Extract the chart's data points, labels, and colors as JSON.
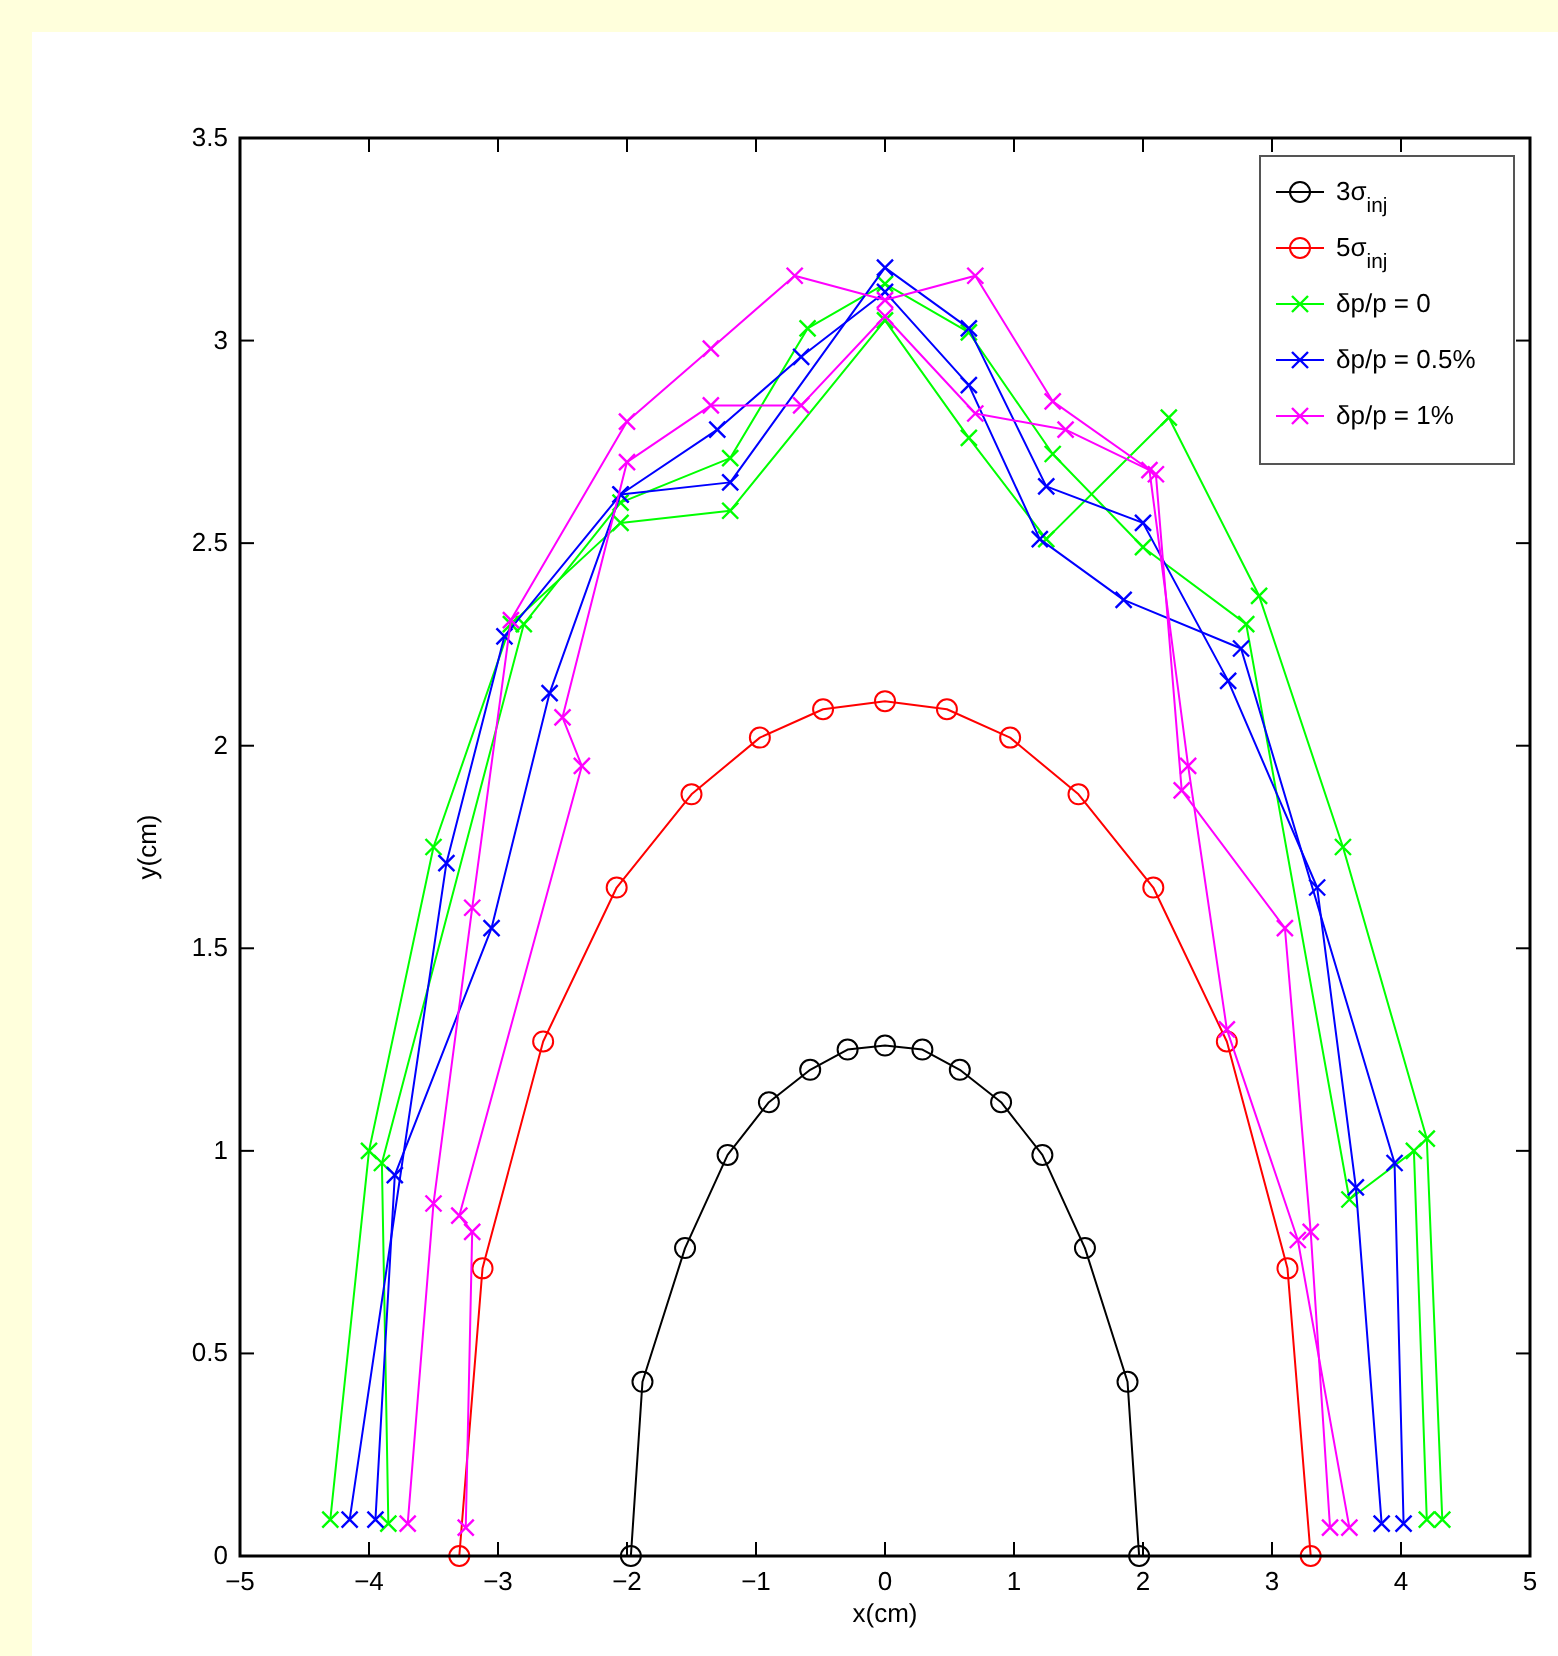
{
  "chart_data": {
    "type": "line",
    "xlabel": "x(cm)",
    "ylabel": "y(cm)",
    "xlim": [
      -5,
      5
    ],
    "ylim": [
      0,
      3.5
    ],
    "xticks": [
      {
        "value": -5,
        "label": "−5"
      },
      {
        "value": -4,
        "label": "−4"
      },
      {
        "value": -3,
        "label": "−3"
      },
      {
        "value": -2,
        "label": "−2"
      },
      {
        "value": -1,
        "label": "−1"
      },
      0,
      1,
      2,
      3,
      4,
      5
    ],
    "yticks": [
      0,
      0.5,
      1,
      1.5,
      2,
      2.5,
      3,
      3.5
    ],
    "grid": false,
    "legend": "top right",
    "line_style": "solid",
    "series": [
      {
        "name": "3σ$_{inj}$",
        "color": "#000000",
        "marker": "circle",
        "x": [
          -1.97,
          -1.88,
          -1.55,
          -1.22,
          -0.9,
          -0.58,
          -0.29,
          0,
          0.29,
          0.58,
          0.9,
          1.22,
          1.55,
          1.88,
          1.97
        ],
        "values": [
          0,
          0.43,
          0.76,
          0.99,
          1.12,
          1.2,
          1.25,
          1.26,
          1.25,
          1.2,
          1.12,
          0.99,
          0.76,
          0.43,
          0
        ]
      },
      {
        "name": "5σ$_{inj}$",
        "color": "#ff0000",
        "marker": "circle",
        "x": [
          -3.3,
          -3.12,
          -2.65,
          -2.08,
          -1.5,
          -0.97,
          -0.48,
          0,
          0.48,
          0.97,
          1.5,
          2.08,
          2.65,
          3.12,
          3.3
        ],
        "values": [
          0,
          0.71,
          1.27,
          1.65,
          1.88,
          2.02,
          2.09,
          2.11,
          2.09,
          2.02,
          1.88,
          1.65,
          1.27,
          0.71,
          0
        ]
      },
      {
        "name": "δp/p = 0",
        "color": "#00ff00",
        "marker": "cross",
        "x": [
          -4.3,
          -4.0,
          -3.5,
          -2.9,
          -2.05,
          -1.2,
          0,
          0.65,
          1.25,
          2.2,
          2.9,
          3.55,
          4.2,
          4.32
        ],
        "values": [
          0.09,
          1.0,
          1.75,
          2.3,
          2.55,
          2.58,
          3.05,
          2.76,
          2.51,
          2.81,
          2.37,
          1.75,
          1.03,
          0.09
        ]
      },
      {
        "color": "#00ff00",
        "marker": "cross",
        "x": [
          -3.85,
          -3.9,
          -2.8,
          -2.05,
          -1.2,
          -0.6,
          0,
          0.65,
          1.3,
          2.0,
          2.8,
          3.6,
          4.1,
          4.2
        ],
        "values": [
          0.08,
          0.97,
          2.3,
          2.6,
          2.71,
          3.03,
          3.14,
          3.02,
          2.72,
          2.49,
          2.3,
          0.88,
          1.0,
          0.09
        ]
      },
      {
        "name": "δp/p = 0.5%",
        "color": "#0000ff",
        "marker": "cross",
        "x": [
          -4.15,
          -3.4,
          -2.95,
          -2.05,
          -1.2,
          0,
          0.65,
          1.25,
          2.0,
          2.66,
          3.35,
          3.65,
          3.85
        ],
        "values": [
          0.09,
          1.71,
          2.27,
          2.62,
          2.65,
          3.18,
          3.03,
          2.64,
          2.55,
          2.16,
          1.65,
          0.91,
          0.08
        ]
      },
      {
        "color": "#0000ff",
        "marker": "cross",
        "x": [
          -3.95,
          -3.8,
          -3.05,
          -2.6,
          -2.05,
          -1.3,
          -0.65,
          0,
          0.65,
          1.2,
          1.85,
          2.76,
          3.95,
          4.02
        ],
        "values": [
          0.09,
          0.94,
          1.55,
          2.13,
          2.62,
          2.78,
          2.96,
          3.12,
          2.89,
          2.51,
          2.36,
          2.24,
          0.97,
          0.08
        ]
      },
      {
        "name": "δp/p = 1%",
        "color": "#ff00ff",
        "marker": "cross",
        "x": [
          -3.7,
          -3.5,
          -3.2,
          -2.9,
          -2.0,
          -1.35,
          -0.7,
          0,
          0.7,
          1.3,
          2.1,
          2.3,
          3.1,
          3.3,
          3.45
        ],
        "values": [
          0.08,
          0.87,
          1.6,
          2.31,
          2.8,
          2.98,
          3.16,
          3.1,
          3.16,
          2.85,
          2.67,
          1.89,
          1.55,
          0.8,
          0.07
        ]
      },
      {
        "color": "#ff00ff",
        "marker": "cross",
        "x": [
          -3.25,
          -3.2,
          -3.3,
          -2.35,
          -2.5,
          -2.0,
          -1.35,
          -0.65,
          0,
          0.7,
          1.4,
          2.05,
          2.35,
          2.65,
          3.2,
          3.6
        ],
        "values": [
          0.07,
          0.8,
          0.84,
          1.95,
          2.07,
          2.7,
          2.84,
          2.84,
          3.06,
          2.82,
          2.78,
          2.68,
          1.95,
          1.3,
          0.78,
          0.07
        ]
      }
    ]
  }
}
